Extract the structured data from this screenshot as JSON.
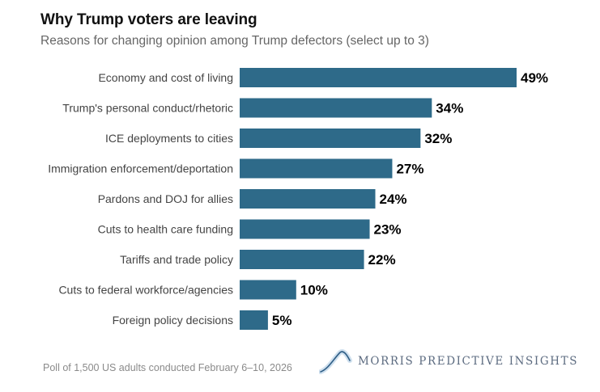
{
  "chart_data": {
    "type": "bar",
    "orientation": "horizontal",
    "title": "Why Trump voters are leaving",
    "subtitle": "Reasons for changing opinion among Trump defectors (select up to 3)",
    "categories": [
      "Economy and cost of living",
      "Trump's personal conduct/rhetoric",
      "ICE deployments to cities",
      "Immigration enforcement/deportation",
      "Pardons and DOJ for allies",
      "Cuts to health care funding",
      "Tariffs and trade policy",
      "Cuts to federal workforce/agencies",
      "Foreign policy decisions"
    ],
    "values": [
      49,
      34,
      32,
      27,
      24,
      23,
      22,
      10,
      5
    ],
    "value_labels": [
      "49%",
      "34%",
      "32%",
      "27%",
      "24%",
      "23%",
      "22%",
      "10%",
      "5%"
    ],
    "unit": "%",
    "xlabel": "",
    "ylabel": "",
    "xlim": [
      0,
      49
    ],
    "grid": false,
    "legend": "none",
    "bar_color": "#2e6a89"
  },
  "footer": {
    "note": "Poll of 1,500 US adults conducted February 6–10, 2026",
    "brand": "MORRIS PREDICTIVE INSIGHTS",
    "brand_icon": "mountain-curve-logo-icon"
  },
  "colors": {
    "title": "#111111",
    "subtitle": "#666666",
    "label": "#444444",
    "value_label": "#000000",
    "brand": "#5c6b80"
  }
}
